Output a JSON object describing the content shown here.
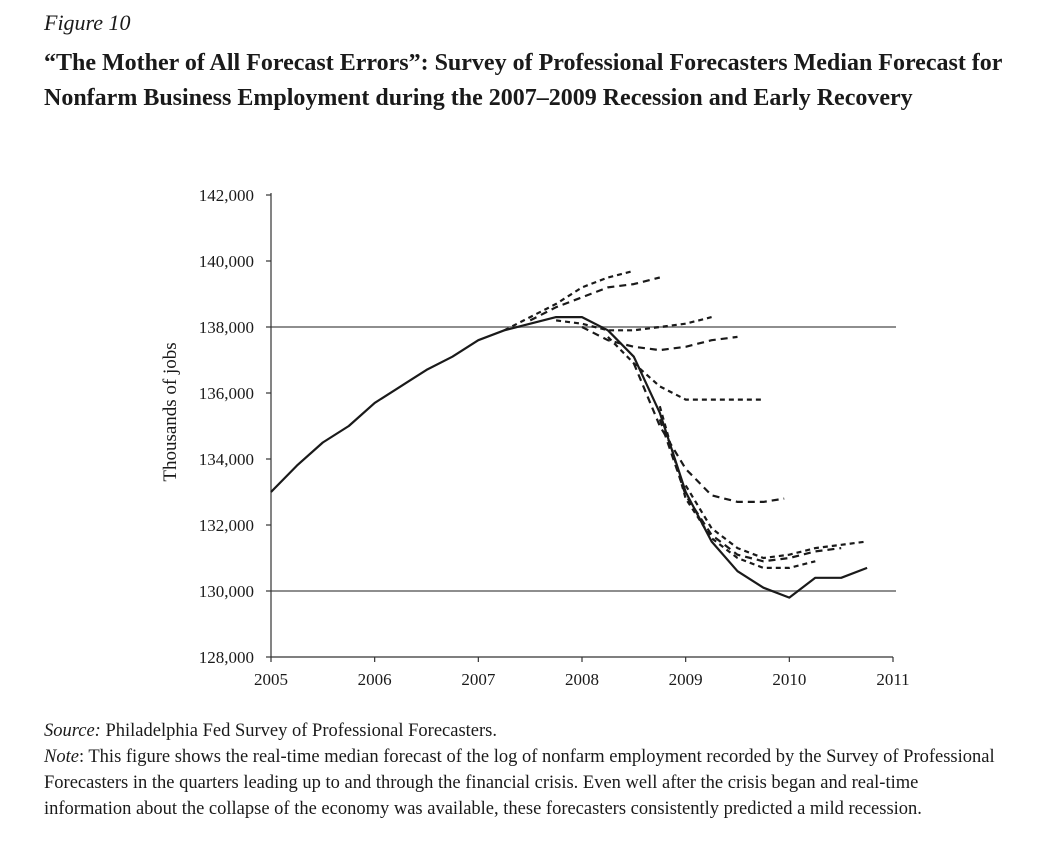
{
  "figure": {
    "label": "Figure 10",
    "title": "“The Mother of All Forecast Errors”: Survey of Professional Forecasters Median Forecast for Nonfarm Business Employment during the 2007–2009 Recession and Early Recovery"
  },
  "caption": {
    "source_label": "Source:",
    "source_text": " Philadelphia Fed Survey of Professional Forecasters.",
    "note_label": "Note",
    "note_text": ": This figure shows the real-time median forecast of the log of nonfarm employment recorded by the Survey of Professional Forecasters in the quarters leading up to and through the financial crisis. Even well after the crisis began and real-time information about the collapse of the economy was available, these forecasters consistently predicted a mild recession."
  },
  "chart_data": {
    "type": "line",
    "ylabel": "Thousands of jobs",
    "xlabel": "",
    "xlim": [
      2005,
      2011
    ],
    "ylim": [
      128000,
      142000
    ],
    "x_ticks": [
      "2005",
      "2006",
      "2007",
      "2008",
      "2009",
      "2010",
      "2011"
    ],
    "y_ticks": [
      "128,000",
      "130,000",
      "132,000",
      "134,000",
      "136,000",
      "138,000",
      "140,000",
      "142,000"
    ],
    "reference_lines": [
      138000,
      130000
    ],
    "grid": false,
    "legend": "none",
    "actual": {
      "style": "solid",
      "points": [
        [
          2005.0,
          133000
        ],
        [
          2005.25,
          133800
        ],
        [
          2005.5,
          134500
        ],
        [
          2005.75,
          135000
        ],
        [
          2006.0,
          135700
        ],
        [
          2006.25,
          136200
        ],
        [
          2006.5,
          136700
        ],
        [
          2006.75,
          137100
        ],
        [
          2007.0,
          137600
        ],
        [
          2007.25,
          137900
        ],
        [
          2007.5,
          138100
        ],
        [
          2007.75,
          138300
        ],
        [
          2008.0,
          138300
        ],
        [
          2008.25,
          137900
        ],
        [
          2008.5,
          137100
        ],
        [
          2008.75,
          135400
        ],
        [
          2009.0,
          133000
        ],
        [
          2009.25,
          131500
        ],
        [
          2009.5,
          130600
        ],
        [
          2009.75,
          130100
        ],
        [
          2010.0,
          129800
        ],
        [
          2010.25,
          130400
        ],
        [
          2010.5,
          130400
        ],
        [
          2010.75,
          130700
        ]
      ]
    },
    "forecasts": [
      {
        "style": "dashed",
        "points": [
          [
            2007.25,
            137900
          ],
          [
            2007.5,
            138300
          ],
          [
            2007.75,
            138700
          ],
          [
            2008.0,
            139200
          ],
          [
            2008.25,
            139500
          ],
          [
            2008.5,
            139700
          ]
        ]
      },
      {
        "style": "dashed",
        "points": [
          [
            2007.5,
            138200
          ],
          [
            2007.75,
            138600
          ],
          [
            2008.0,
            138900
          ],
          [
            2008.25,
            139200
          ],
          [
            2008.5,
            139300
          ],
          [
            2008.75,
            139500
          ]
        ]
      },
      {
        "style": "dashed",
        "points": [
          [
            2007.75,
            138200
          ],
          [
            2008.0,
            138100
          ],
          [
            2008.25,
            137900
          ],
          [
            2008.5,
            137900
          ],
          [
            2008.75,
            138000
          ],
          [
            2009.0,
            138100
          ],
          [
            2009.25,
            138300
          ]
        ]
      },
      {
        "style": "dashed",
        "points": [
          [
            2008.0,
            138000
          ],
          [
            2008.25,
            137600
          ],
          [
            2008.5,
            137400
          ],
          [
            2008.75,
            137300
          ],
          [
            2009.0,
            137400
          ],
          [
            2009.25,
            137600
          ],
          [
            2009.5,
            137700
          ]
        ]
      },
      {
        "style": "dashed",
        "points": [
          [
            2008.25,
            137700
          ],
          [
            2008.5,
            136900
          ],
          [
            2008.75,
            136200
          ],
          [
            2009.0,
            135800
          ],
          [
            2009.25,
            135800
          ],
          [
            2009.5,
            135800
          ],
          [
            2009.75,
            135800
          ]
        ]
      },
      {
        "style": "dashed",
        "points": [
          [
            2008.5,
            136900
          ],
          [
            2008.75,
            135000
          ],
          [
            2009.0,
            133700
          ],
          [
            2009.25,
            132900
          ],
          [
            2009.5,
            132700
          ],
          [
            2009.75,
            132700
          ],
          [
            2009.95,
            132800
          ]
        ]
      },
      {
        "style": "dashed",
        "points": [
          [
            2008.75,
            135600
          ],
          [
            2009.0,
            132800
          ],
          [
            2009.25,
            131600
          ],
          [
            2009.5,
            131000
          ],
          [
            2009.75,
            130700
          ],
          [
            2010.0,
            130700
          ],
          [
            2010.25,
            130900
          ]
        ]
      },
      {
        "style": "dashed",
        "points": [
          [
            2008.75,
            135200
          ],
          [
            2009.0,
            132900
          ],
          [
            2009.25,
            131700
          ],
          [
            2009.5,
            131100
          ],
          [
            2009.75,
            130900
          ],
          [
            2010.0,
            131000
          ],
          [
            2010.25,
            131200
          ],
          [
            2010.5,
            131300
          ]
        ]
      },
      {
        "style": "dashed",
        "points": [
          [
            2009.0,
            133200
          ],
          [
            2009.25,
            131900
          ],
          [
            2009.5,
            131300
          ],
          [
            2009.75,
            131000
          ],
          [
            2010.0,
            131100
          ],
          [
            2010.25,
            131300
          ],
          [
            2010.5,
            131400
          ],
          [
            2010.75,
            131500
          ]
        ]
      }
    ]
  }
}
